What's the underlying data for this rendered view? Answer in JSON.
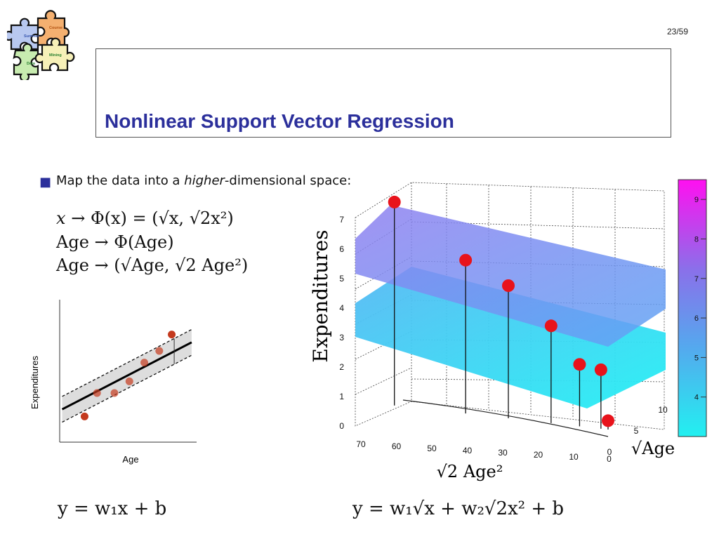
{
  "slide": {
    "page_number": "23/59",
    "title": "Nonlinear Support Vector Regression",
    "bullet": {
      "prefix": "Map the data into a ",
      "emphasis": "higher",
      "suffix": "-dimensional space:"
    }
  },
  "logo": {
    "pieces": [
      {
        "label": "Summer",
        "color": "#b8c8f0"
      },
      {
        "label": "Course",
        "color": "#f4b070"
      },
      {
        "label": "Data",
        "color": "#c8ecb0"
      },
      {
        "label": "Mining",
        "color": "#f6f0b8"
      }
    ]
  },
  "equations": {
    "map_line1": {
      "lhs": "x",
      "arrow": "→",
      "phi": "Φ(x) = (√x, √2x²)"
    },
    "map_line2": {
      "lhs": "Age",
      "arrow": "→",
      "rhs": "Φ(Age)"
    },
    "map_line3": {
      "lhs": "Age",
      "arrow": "→",
      "rhs": "(√Age, √2 Age²)"
    },
    "linear_model": "y = w₁x + b",
    "nonlinear_model": "y = w₁√x + w₂√2x² + b"
  },
  "chart_data": [
    {
      "type": "scatter",
      "title": "",
      "xlabel": "Age",
      "ylabel": "Expenditures",
      "x": [
        1.0,
        1.5,
        2.2,
        2.8,
        3.4,
        4.0,
        4.5
      ],
      "y": [
        1.1,
        2.1,
        2.1,
        2.6,
        3.4,
        3.9,
        4.6
      ],
      "regression_line": {
        "intercept": 1.35,
        "slope": 0.55
      },
      "epsilon_tube": 0.55,
      "xlim": [
        0,
        5.5
      ],
      "ylim": [
        0,
        6
      ]
    },
    {
      "type": "scatter",
      "title": "",
      "xlabel": "√2 Age²",
      "ylabel": "Expenditures",
      "zlabel": "√Age",
      "x_ticks": [
        "70",
        "60",
        "50",
        "40",
        "30",
        "20",
        "10",
        "0"
      ],
      "y_ticks": [
        "0",
        "1",
        "2",
        "3",
        "4",
        "5",
        "6",
        "7"
      ],
      "z_ticks": [
        "0",
        "5",
        "10"
      ],
      "colorbar_ticks": [
        "4",
        "5",
        "6",
        "7",
        "8",
        "9"
      ],
      "colorbar_range": [
        3,
        9.5
      ],
      "points": [
        {
          "x2": 60,
          "expenditure": 6.9
        },
        {
          "x2": 40,
          "expenditure": 5.2
        },
        {
          "x2": 28,
          "expenditure": 4.5
        },
        {
          "x2": 16,
          "expenditure": 3.3
        },
        {
          "x2": 8,
          "expenditure": 2.1
        },
        {
          "x2": 2,
          "expenditure": 2.0
        },
        {
          "x2": 0,
          "expenditure": 0.3
        }
      ]
    }
  ]
}
